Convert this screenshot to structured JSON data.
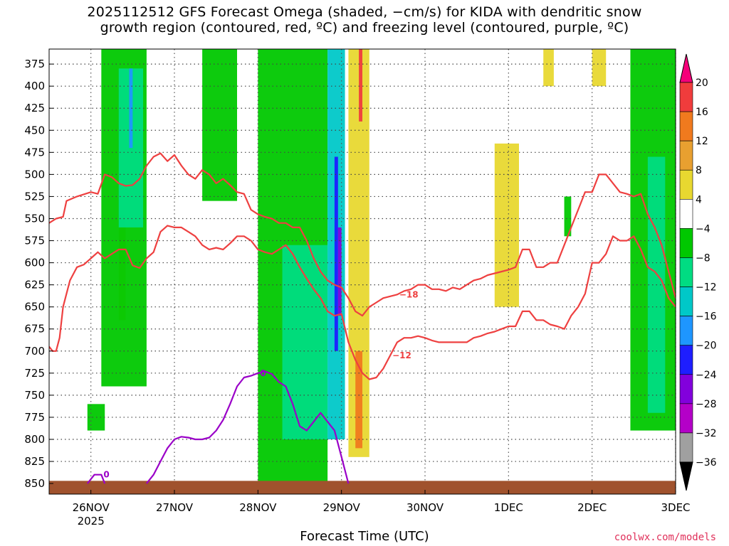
{
  "title_line1": "2025112512 GFS Forecast Omega (shaded, −cm/s) for KIDA with dendritic snow",
  "title_line2": "growth region (contoured, red, ºC) and freezing level (contoured, purple, ºC)",
  "credit": "coolwx.com/models",
  "chart_data": {
    "type": "heatmap",
    "title": "2025112512 GFS Forecast Omega (shaded, −cm/s) for KIDA with dendritic snow growth region (contoured, red, ºC) and freezing level (contoured, purple, ºC)",
    "xlabel": "Forecast Time (UTC)",
    "ylabel": "",
    "y_ticks": [
      375,
      400,
      425,
      450,
      475,
      500,
      525,
      550,
      575,
      600,
      625,
      650,
      675,
      700,
      725,
      750,
      775,
      800,
      825,
      850
    ],
    "y_tick_labels": [
      "375",
      "400",
      "425",
      "450",
      "475",
      "500",
      "525",
      "550",
      "575",
      "600",
      "625",
      "650",
      "675",
      "700",
      "725",
      "750",
      "775",
      "800",
      "825",
      "850"
    ],
    "ylim": [
      358,
      862
    ],
    "x_range_hours": [
      -12,
      168
    ],
    "x_ticks": [
      {
        "hours": 0,
        "label": "26NOV",
        "sublabel": "2025"
      },
      {
        "hours": 24,
        "label": "27NOV"
      },
      {
        "hours": 48,
        "label": "28NOV"
      },
      {
        "hours": 72,
        "label": "29NOV"
      },
      {
        "hours": 96,
        "label": "30NOV"
      },
      {
        "hours": 120,
        "label": "1DEC"
      },
      {
        "hours": 144,
        "label": "2DEC"
      },
      {
        "hours": 168,
        "label": "3DEC"
      }
    ],
    "grid": true,
    "colorbar": {
      "labels": [
        "20",
        "16",
        "12",
        "8",
        "4",
        "−4",
        "−8",
        "−12",
        "−16",
        "−20",
        "−24",
        "−28",
        "−32",
        "−36"
      ],
      "colors": [
        "#f5007a",
        "#f03c3c",
        "#f07a1e",
        "#e8a030",
        "#e8d830",
        "#ffffff",
        "#00c800",
        "#00dc82",
        "#00c8c8",
        "#1e96ff",
        "#1e1eff",
        "#8200dc",
        "#b400c8",
        "#a0a0a0",
        "#000000"
      ]
    },
    "contours_red": [
      {
        "label": "−18",
        "points": [
          [
            -12,
            555
          ],
          [
            -10,
            550
          ],
          [
            -8,
            548
          ],
          [
            -7,
            530
          ],
          [
            -4,
            525
          ],
          [
            0,
            520
          ],
          [
            2,
            522
          ],
          [
            4,
            500
          ],
          [
            6,
            503
          ],
          [
            8,
            510
          ],
          [
            10,
            513
          ],
          [
            12,
            512
          ],
          [
            14,
            505
          ],
          [
            16,
            490
          ],
          [
            18,
            480
          ],
          [
            20,
            476
          ],
          [
            22,
            485
          ],
          [
            24,
            478
          ],
          [
            26,
            490
          ],
          [
            28,
            500
          ],
          [
            30,
            505
          ],
          [
            32,
            495
          ],
          [
            34,
            500
          ],
          [
            36,
            510
          ],
          [
            38,
            505
          ],
          [
            40,
            512
          ],
          [
            42,
            520
          ],
          [
            44,
            522
          ],
          [
            46,
            540
          ],
          [
            48,
            545
          ],
          [
            50,
            548
          ],
          [
            52,
            550
          ],
          [
            54,
            555
          ],
          [
            56,
            555
          ],
          [
            58,
            560
          ],
          [
            60,
            560
          ],
          [
            62,
            575
          ],
          [
            64,
            595
          ],
          [
            66,
            610
          ],
          [
            68,
            620
          ],
          [
            70,
            625
          ],
          [
            72,
            628
          ],
          [
            74,
            640
          ],
          [
            76,
            655
          ],
          [
            78,
            660
          ],
          [
            80,
            650
          ],
          [
            82,
            645
          ],
          [
            84,
            640
          ],
          [
            86,
            638
          ],
          [
            88,
            636
          ],
          [
            90,
            632
          ],
          [
            92,
            630
          ],
          [
            94,
            625
          ],
          [
            96,
            625
          ],
          [
            98,
            630
          ],
          [
            100,
            630
          ],
          [
            102,
            632
          ],
          [
            104,
            628
          ],
          [
            106,
            630
          ],
          [
            108,
            625
          ],
          [
            110,
            620
          ],
          [
            112,
            618
          ],
          [
            114,
            614
          ],
          [
            116,
            612
          ],
          [
            118,
            610
          ],
          [
            120,
            608
          ],
          [
            122,
            605
          ],
          [
            124,
            585
          ],
          [
            126,
            585
          ],
          [
            128,
            605
          ],
          [
            130,
            605
          ],
          [
            132,
            600
          ],
          [
            134,
            600
          ],
          [
            136,
            580
          ],
          [
            138,
            560
          ],
          [
            140,
            540
          ],
          [
            142,
            520
          ],
          [
            144,
            520
          ],
          [
            146,
            500
          ],
          [
            148,
            500
          ],
          [
            150,
            510
          ],
          [
            152,
            520
          ],
          [
            154,
            522
          ],
          [
            156,
            525
          ],
          [
            158,
            522
          ],
          [
            160,
            545
          ],
          [
            162,
            560
          ],
          [
            164,
            580
          ],
          [
            166,
            610
          ],
          [
            168,
            640
          ]
        ]
      },
      {
        "label": "−12",
        "points": [
          [
            -12,
            695
          ],
          [
            -11,
            700
          ],
          [
            -10,
            700
          ],
          [
            -9,
            685
          ],
          [
            -8,
            650
          ],
          [
            -6,
            620
          ],
          [
            -4,
            605
          ],
          [
            -2,
            602
          ],
          [
            0,
            595
          ],
          [
            2,
            588
          ],
          [
            4,
            595
          ],
          [
            6,
            590
          ],
          [
            8,
            585
          ],
          [
            10,
            585
          ],
          [
            12,
            603
          ],
          [
            14,
            606
          ],
          [
            16,
            595
          ],
          [
            18,
            588
          ],
          [
            20,
            565
          ],
          [
            22,
            558
          ],
          [
            24,
            560
          ],
          [
            26,
            560
          ],
          [
            28,
            565
          ],
          [
            30,
            570
          ],
          [
            32,
            580
          ],
          [
            34,
            585
          ],
          [
            36,
            583
          ],
          [
            38,
            585
          ],
          [
            40,
            578
          ],
          [
            42,
            570
          ],
          [
            44,
            570
          ],
          [
            46,
            575
          ],
          [
            48,
            585
          ],
          [
            50,
            588
          ],
          [
            52,
            590
          ],
          [
            54,
            585
          ],
          [
            56,
            580
          ],
          [
            58,
            590
          ],
          [
            60,
            605
          ],
          [
            62,
            618
          ],
          [
            64,
            630
          ],
          [
            66,
            640
          ],
          [
            68,
            655
          ],
          [
            70,
            660
          ],
          [
            72,
            658
          ],
          [
            74,
            690
          ],
          [
            76,
            710
          ],
          [
            78,
            725
          ],
          [
            80,
            732
          ],
          [
            82,
            730
          ],
          [
            84,
            720
          ],
          [
            86,
            705
          ],
          [
            88,
            690
          ],
          [
            90,
            685
          ],
          [
            92,
            685
          ],
          [
            94,
            683
          ],
          [
            96,
            685
          ],
          [
            98,
            688
          ],
          [
            100,
            690
          ],
          [
            102,
            690
          ],
          [
            104,
            690
          ],
          [
            106,
            690
          ],
          [
            108,
            690
          ],
          [
            110,
            685
          ],
          [
            112,
            683
          ],
          [
            114,
            680
          ],
          [
            116,
            678
          ],
          [
            118,
            675
          ],
          [
            120,
            672
          ],
          [
            122,
            672
          ],
          [
            124,
            655
          ],
          [
            126,
            655
          ],
          [
            128,
            665
          ],
          [
            130,
            665
          ],
          [
            132,
            670
          ],
          [
            134,
            672
          ],
          [
            136,
            675
          ],
          [
            138,
            660
          ],
          [
            140,
            650
          ],
          [
            142,
            635
          ],
          [
            144,
            600
          ],
          [
            146,
            600
          ],
          [
            148,
            590
          ],
          [
            150,
            570
          ],
          [
            152,
            575
          ],
          [
            154,
            575
          ],
          [
            156,
            570
          ],
          [
            158,
            585
          ],
          [
            160,
            605
          ],
          [
            162,
            610
          ],
          [
            164,
            620
          ],
          [
            166,
            640
          ],
          [
            168,
            650
          ]
        ]
      }
    ],
    "contours_purple": [
      {
        "label": "0",
        "points": [
          [
            -1,
            850
          ],
          [
            1,
            840
          ],
          [
            3,
            840
          ],
          [
            4,
            850
          ]
        ]
      },
      {
        "label": "0",
        "points": [
          [
            16,
            850
          ],
          [
            18,
            840
          ],
          [
            20,
            825
          ],
          [
            22,
            810
          ],
          [
            24,
            800
          ],
          [
            26,
            797
          ],
          [
            28,
            798
          ],
          [
            30,
            800
          ],
          [
            32,
            800
          ],
          [
            34,
            798
          ],
          [
            36,
            790
          ],
          [
            38,
            778
          ],
          [
            40,
            760
          ],
          [
            42,
            740
          ],
          [
            44,
            730
          ],
          [
            46,
            728
          ],
          [
            48,
            725
          ],
          [
            50,
            723
          ],
          [
            52,
            726
          ],
          [
            54,
            735
          ],
          [
            56,
            740
          ],
          [
            58,
            760
          ],
          [
            60,
            785
          ],
          [
            62,
            790
          ],
          [
            64,
            780
          ],
          [
            66,
            770
          ],
          [
            68,
            780
          ],
          [
            70,
            790
          ],
          [
            72,
            820
          ],
          [
            74,
            850
          ]
        ]
      }
    ],
    "shading_regions": [
      {
        "color": "#e8d830",
        "x": [
          8,
          10
        ],
        "y": [
          545,
          665
        ]
      },
      {
        "color": "#00c800",
        "x": [
          3,
          16
        ],
        "y": [
          358,
          740
        ]
      },
      {
        "color": "#00dc82",
        "x": [
          8,
          15
        ],
        "y": [
          380,
          560
        ]
      },
      {
        "color": "#1e96ff",
        "x": [
          11,
          12
        ],
        "y": [
          380,
          470
        ]
      },
      {
        "color": "#00c800",
        "x": [
          -1,
          4
        ],
        "y": [
          760,
          790
        ]
      },
      {
        "color": "#00c800",
        "x": [
          32,
          42
        ],
        "y": [
          358,
          530
        ]
      },
      {
        "color": "#00c800",
        "x": [
          48,
          68
        ],
        "y": [
          358,
          850
        ]
      },
      {
        "color": "#00dc82",
        "x": [
          55,
          68
        ],
        "y": [
          580,
          800
        ]
      },
      {
        "color": "#00c8c8",
        "x": [
          68,
          73
        ],
        "y": [
          358,
          800
        ]
      },
      {
        "color": "#1e1eff",
        "x": [
          70,
          71
        ],
        "y": [
          480,
          700
        ]
      },
      {
        "color": "#8200dc",
        "x": [
          71,
          72
        ],
        "y": [
          560,
          660
        ]
      },
      {
        "color": "#e8d830",
        "x": [
          74,
          80
        ],
        "y": [
          358,
          820
        ]
      },
      {
        "color": "#f07a1e",
        "x": [
          76,
          78
        ],
        "y": [
          700,
          810
        ]
      },
      {
        "color": "#f03c3c",
        "x": [
          77,
          78
        ],
        "y": [
          358,
          440
        ]
      },
      {
        "color": "#e8d830",
        "x": [
          116,
          123
        ],
        "y": [
          465,
          650
        ]
      },
      {
        "color": "#e8d830",
        "x": [
          130,
          133
        ],
        "y": [
          358,
          400
        ]
      },
      {
        "color": "#e8d830",
        "x": [
          144,
          148
        ],
        "y": [
          358,
          400
        ]
      },
      {
        "color": "#00c800",
        "x": [
          136,
          138
        ],
        "y": [
          525,
          570
        ]
      },
      {
        "color": "#00c800",
        "x": [
          155,
          168
        ],
        "y": [
          358,
          790
        ]
      },
      {
        "color": "#00dc82",
        "x": [
          160,
          165
        ],
        "y": [
          480,
          770
        ]
      }
    ],
    "terrain": {
      "color": "#a0522d",
      "top_hpa": 847
    }
  }
}
